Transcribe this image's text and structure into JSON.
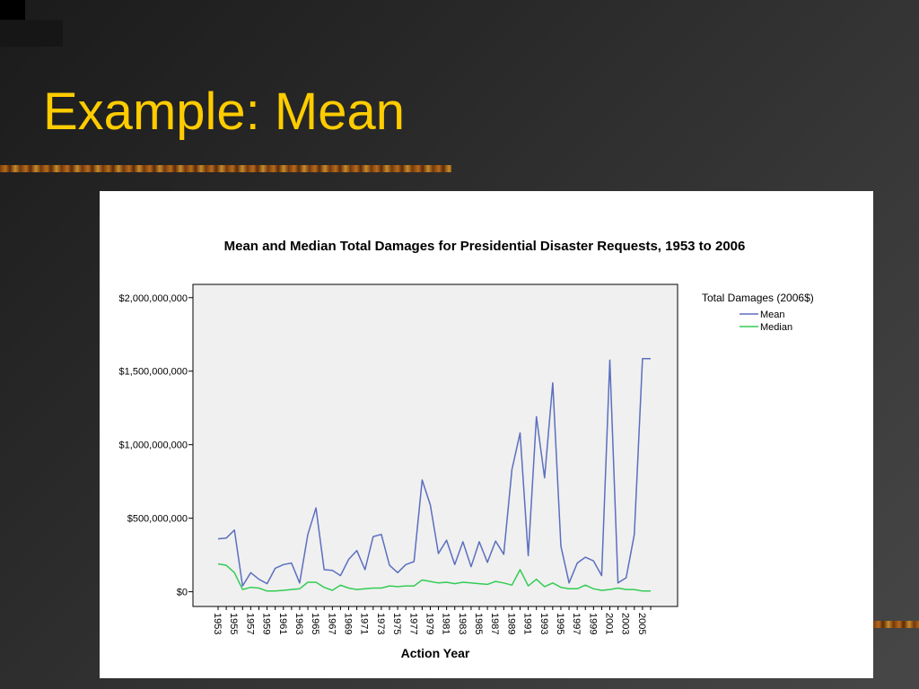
{
  "slide": {
    "title": "Example: Mean"
  },
  "colors": {
    "title": "#ffcc00",
    "mean": "#5b6fbf",
    "median": "#33cc55",
    "plot_background": "#f0f0f0"
  },
  "chart_data": {
    "type": "line",
    "title": "Mean and Median Total Damages for Presidential Disaster Requests, 1953 to 2006",
    "xlabel": "Action Year",
    "ylabel": "",
    "legend_title": "Total Damages (2006$)",
    "legend_position": "right",
    "grid": false,
    "ylim": [
      -100000000,
      2000000000
    ],
    "y_ticks": [
      {
        "value": 0,
        "label": "$0"
      },
      {
        "value": 500000000,
        "label": "$500,000,000"
      },
      {
        "value": 1000000000,
        "label": "$1,000,000,000"
      },
      {
        "value": 1500000000,
        "label": "$1,500,000,000"
      },
      {
        "value": 2000000000,
        "label": "$2,000,000,000"
      }
    ],
    "x_tick_labels": [
      "1953",
      "1955",
      "1957",
      "1959",
      "1961",
      "1963",
      "1965",
      "1967",
      "1969",
      "1971",
      "1973",
      "1975",
      "1977",
      "1979",
      "1981",
      "1983",
      "1985",
      "1987",
      "1989",
      "1991",
      "1993",
      "1995",
      "1997",
      "1999",
      "2001",
      "2003",
      "2005"
    ],
    "x": [
      1953,
      1954,
      1955,
      1956,
      1957,
      1958,
      1959,
      1960,
      1961,
      1962,
      1963,
      1964,
      1965,
      1966,
      1967,
      1968,
      1969,
      1970,
      1971,
      1972,
      1973,
      1974,
      1975,
      1976,
      1977,
      1978,
      1979,
      1980,
      1981,
      1982,
      1983,
      1984,
      1985,
      1986,
      1987,
      1988,
      1989,
      1990,
      1991,
      1992,
      1993,
      1994,
      1995,
      1996,
      1997,
      1998,
      1999,
      2000,
      2001,
      2002,
      2003,
      2004,
      2005,
      2006
    ],
    "series": [
      {
        "name": "Mean",
        "values": [
          360000000,
          365000000,
          420000000,
          40000000,
          130000000,
          85000000,
          55000000,
          160000000,
          185000000,
          195000000,
          60000000,
          390000000,
          570000000,
          150000000,
          145000000,
          110000000,
          220000000,
          280000000,
          150000000,
          375000000,
          390000000,
          180000000,
          130000000,
          185000000,
          205000000,
          760000000,
          590000000,
          260000000,
          350000000,
          185000000,
          340000000,
          170000000,
          340000000,
          200000000,
          345000000,
          255000000,
          830000000,
          1080000000,
          245000000,
          1190000000,
          775000000,
          1420000000,
          310000000,
          60000000,
          195000000,
          235000000,
          210000000,
          110000000,
          1575000000,
          60000000,
          95000000,
          390000000,
          1585000000,
          1585000000
        ]
      },
      {
        "name": "Median",
        "values": [
          190000000,
          180000000,
          130000000,
          15000000,
          30000000,
          25000000,
          5000000,
          5000000,
          10000000,
          15000000,
          20000000,
          65000000,
          65000000,
          30000000,
          10000000,
          45000000,
          25000000,
          15000000,
          20000000,
          25000000,
          25000000,
          40000000,
          35000000,
          40000000,
          40000000,
          80000000,
          70000000,
          60000000,
          65000000,
          55000000,
          65000000,
          60000000,
          55000000,
          50000000,
          70000000,
          60000000,
          45000000,
          150000000,
          40000000,
          85000000,
          35000000,
          60000000,
          30000000,
          20000000,
          20000000,
          45000000,
          20000000,
          10000000,
          15000000,
          25000000,
          15000000,
          15000000,
          5000000,
          5000000
        ]
      }
    ]
  }
}
